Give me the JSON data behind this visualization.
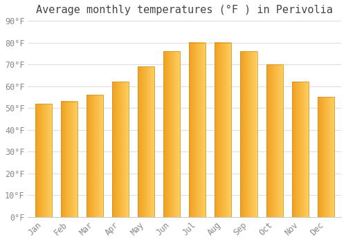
{
  "title": "Average monthly temperatures (°F ) in Perivolia",
  "months": [
    "Jan",
    "Feb",
    "Mar",
    "Apr",
    "May",
    "Jun",
    "Jul",
    "Aug",
    "Sep",
    "Oct",
    "Nov",
    "Dec"
  ],
  "values": [
    52,
    53,
    56,
    62,
    69,
    76,
    80,
    80,
    76,
    70,
    62,
    55
  ],
  "bar_color_left": "#F5A623",
  "bar_color_right": "#FFD04E",
  "bar_edge_color": "#CCAA44",
  "background_color": "#FFFFFF",
  "plot_bg_color": "#FFFFFF",
  "grid_color": "#DDDDDD",
  "title_color": "#444444",
  "tick_color": "#888888",
  "ylim": [
    0,
    90
  ],
  "yticks": [
    0,
    10,
    20,
    30,
    40,
    50,
    60,
    70,
    80,
    90
  ],
  "title_fontsize": 11,
  "tick_fontsize": 8.5,
  "figsize": [
    5.0,
    3.5
  ],
  "dpi": 100
}
